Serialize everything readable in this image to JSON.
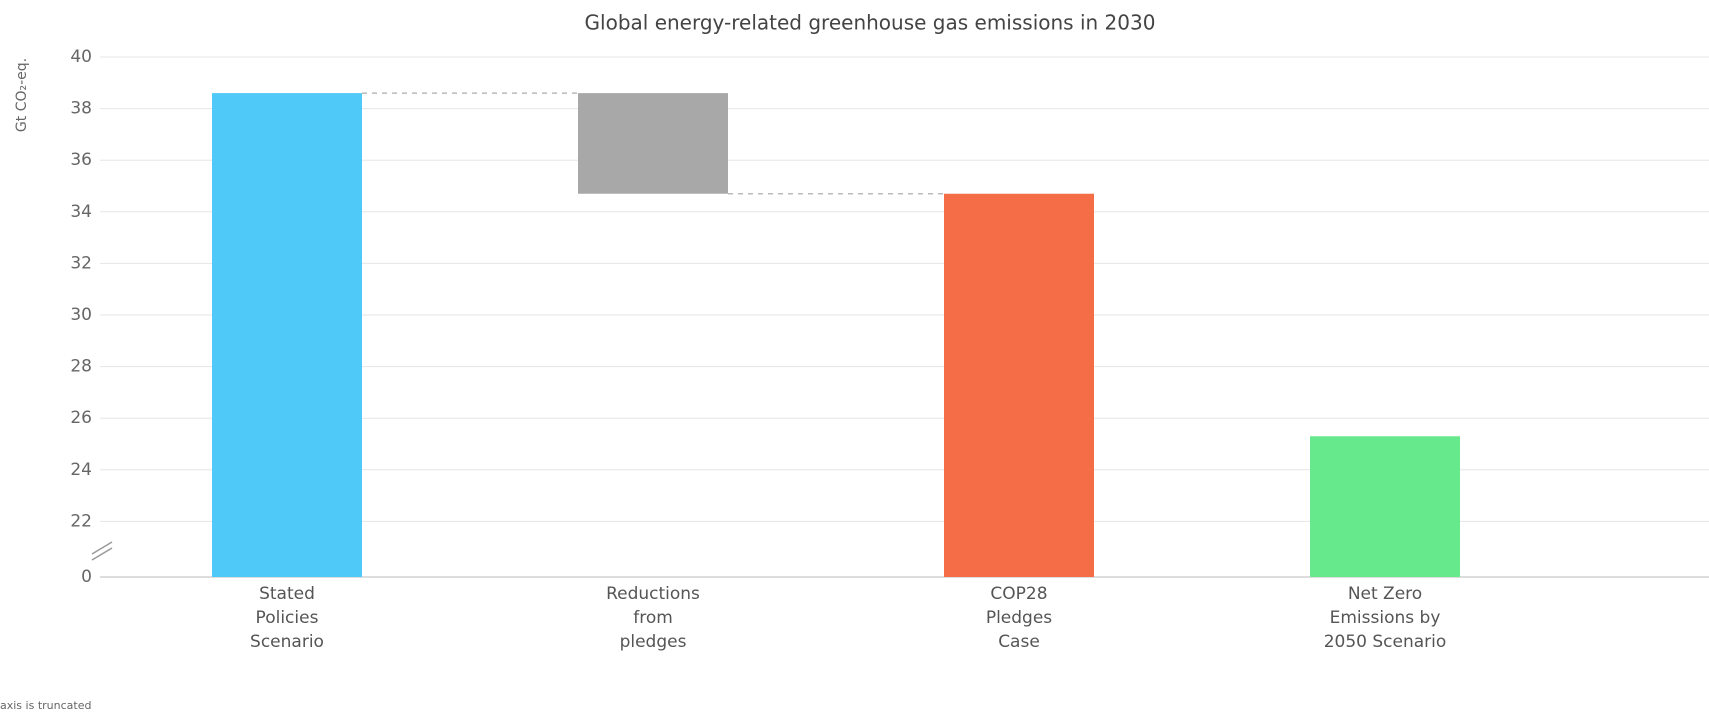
{
  "chart_data": {
    "type": "waterfall",
    "title": "Global energy-related greenhouse gas emissions in 2030",
    "y_label": "Gt CO₂-eq.",
    "note": "axis is truncated",
    "categories": [
      "Stated\nPolicies\nScenario",
      "Reductions\nfrom\npledges",
      "COP28\nPledges\nCase",
      "Net Zero\nEmissions by\n2050 Scenario"
    ],
    "values": [
      38.6,
      -3.9,
      34.7,
      25.3
    ],
    "measure": [
      "total",
      "relative",
      "total",
      "total"
    ],
    "colors": [
      "#4fc9f7",
      "#a8a8a8",
      "#f46d47",
      "#66e98c"
    ],
    "ylim": [
      0,
      40
    ],
    "yticks": [
      0,
      22,
      24,
      26,
      28,
      30,
      32,
      34,
      36,
      38,
      40
    ],
    "axis_break": [
      0,
      20
    ],
    "grid": true
  }
}
